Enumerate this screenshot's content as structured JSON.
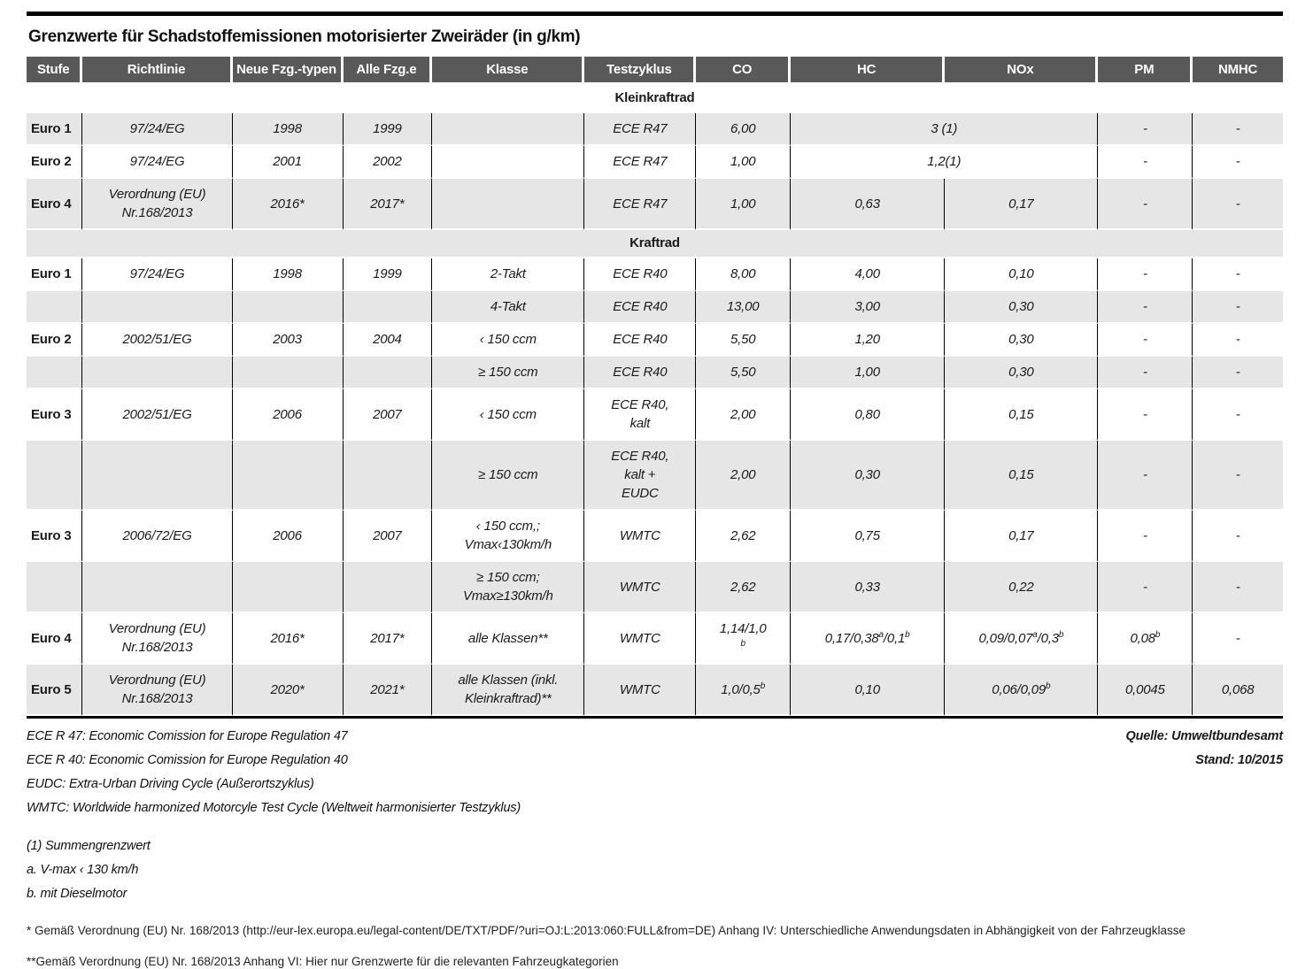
{
  "colors": {
    "header_bg": "#595959",
    "row_shade": "#e6e6e6",
    "rule": "#000000",
    "header_text": "#ffffff"
  },
  "chart_data": {
    "type": "table",
    "title": "Grenzwerte für Schadstoffemissionen motorisierter Zweiräder (in g/km)",
    "columns": [
      "Stufe",
      "Richtlinie",
      "Neue Fzg.-typen",
      "Alle Fzg.e",
      "Klasse",
      "Testzyklus",
      "CO",
      "HC",
      "NOx",
      "PM",
      "NMHC"
    ],
    "sections": [
      {
        "label": "Kleinkraftrad",
        "shade": false,
        "rows": [
          {
            "shade": true,
            "cells": [
              {
                "t": "Euro 1"
              },
              {
                "t": "97/24/EG"
              },
              {
                "t": "1998"
              },
              {
                "t": "1999"
              },
              {
                "t": ""
              },
              {
                "t": "ECE R47"
              },
              {
                "t": "6,00"
              },
              {
                "t": "3 (1)",
                "span": 2
              },
              {
                "t": "-"
              },
              {
                "t": "-"
              }
            ]
          },
          {
            "shade": false,
            "cells": [
              {
                "t": "Euro 2"
              },
              {
                "t": "97/24/EG"
              },
              {
                "t": "2001"
              },
              {
                "t": "2002"
              },
              {
                "t": ""
              },
              {
                "t": "ECE R47"
              },
              {
                "t": "1,00"
              },
              {
                "t": "1,2(1)",
                "span": 2
              },
              {
                "t": "-"
              },
              {
                "t": "-"
              }
            ]
          },
          {
            "shade": true,
            "cells": [
              {
                "t": "Euro 4"
              },
              {
                "t": "Verordnung (EU)\nNr.168/2013"
              },
              {
                "t": "2016*"
              },
              {
                "t": "2017*"
              },
              {
                "t": ""
              },
              {
                "t": "ECE R47"
              },
              {
                "t": "1,00"
              },
              {
                "t": "0,63"
              },
              {
                "t": "0,17"
              },
              {
                "t": "-"
              },
              {
                "t": "-"
              }
            ]
          }
        ]
      },
      {
        "label": "Kraftrad",
        "shade": true,
        "rows": [
          {
            "shade": false,
            "cells": [
              {
                "t": "Euro 1"
              },
              {
                "t": "97/24/EG"
              },
              {
                "t": "1998"
              },
              {
                "t": "1999"
              },
              {
                "t": "2-Takt"
              },
              {
                "t": "ECE R40"
              },
              {
                "t": "8,00"
              },
              {
                "t": "4,00"
              },
              {
                "t": "0,10"
              },
              {
                "t": "-"
              },
              {
                "t": "-"
              }
            ]
          },
          {
            "shade": true,
            "cells": [
              {
                "t": ""
              },
              {
                "t": ""
              },
              {
                "t": ""
              },
              {
                "t": ""
              },
              {
                "t": "4-Takt"
              },
              {
                "t": "ECE R40"
              },
              {
                "t": "13,00"
              },
              {
                "t": "3,00"
              },
              {
                "t": "0,30"
              },
              {
                "t": "-"
              },
              {
                "t": "-"
              }
            ]
          },
          {
            "shade": false,
            "cells": [
              {
                "t": "Euro 2"
              },
              {
                "t": "2002/51/EG"
              },
              {
                "t": "2003"
              },
              {
                "t": "2004"
              },
              {
                "t": "‹ 150 ccm"
              },
              {
                "t": "ECE R40"
              },
              {
                "t": "5,50"
              },
              {
                "t": "1,20"
              },
              {
                "t": "0,30"
              },
              {
                "t": "-"
              },
              {
                "t": "-"
              }
            ]
          },
          {
            "shade": true,
            "cells": [
              {
                "t": ""
              },
              {
                "t": ""
              },
              {
                "t": ""
              },
              {
                "t": ""
              },
              {
                "t": "≥ 150 ccm"
              },
              {
                "t": "ECE R40"
              },
              {
                "t": "5,50"
              },
              {
                "t": "1,00"
              },
              {
                "t": "0,30"
              },
              {
                "t": "-"
              },
              {
                "t": "-"
              }
            ]
          },
          {
            "shade": false,
            "cells": [
              {
                "t": "Euro 3"
              },
              {
                "t": "2002/51/EG"
              },
              {
                "t": "2006"
              },
              {
                "t": "2007"
              },
              {
                "t": "‹ 150 ccm"
              },
              {
                "t": "ECE R40,\nkalt"
              },
              {
                "t": "2,00"
              },
              {
                "t": "0,80"
              },
              {
                "t": "0,15"
              },
              {
                "t": "-"
              },
              {
                "t": "-"
              }
            ]
          },
          {
            "shade": true,
            "cells": [
              {
                "t": ""
              },
              {
                "t": ""
              },
              {
                "t": ""
              },
              {
                "t": ""
              },
              {
                "t": "≥ 150 ccm"
              },
              {
                "t": "ECE R40,\nkalt +\nEUDC"
              },
              {
                "t": "2,00"
              },
              {
                "t": "0,30"
              },
              {
                "t": "0,15"
              },
              {
                "t": "-"
              },
              {
                "t": "-"
              }
            ]
          },
          {
            "shade": false,
            "cells": [
              {
                "t": "Euro 3"
              },
              {
                "t": "2006/72/EG"
              },
              {
                "t": "2006"
              },
              {
                "t": "2007"
              },
              {
                "t": "‹ 150 ccm,;\nVmax‹130km/h"
              },
              {
                "t": "WMTC"
              },
              {
                "t": "2,62"
              },
              {
                "t": "0,75"
              },
              {
                "t": "0,17"
              },
              {
                "t": "-"
              },
              {
                "t": "-"
              }
            ]
          },
          {
            "shade": true,
            "cells": [
              {
                "t": ""
              },
              {
                "t": ""
              },
              {
                "t": ""
              },
              {
                "t": ""
              },
              {
                "t": "≥ 150 ccm;\nVmax≥130km/h"
              },
              {
                "t": "WMTC"
              },
              {
                "t": "2,62"
              },
              {
                "t": "0,33"
              },
              {
                "t": "0,22"
              },
              {
                "t": "-"
              },
              {
                "t": "-"
              }
            ]
          },
          {
            "shade": false,
            "cells": [
              {
                "t": "Euro 4"
              },
              {
                "t": "Verordnung (EU)\nNr.168/2013"
              },
              {
                "t": "2016*"
              },
              {
                "t": "2017*"
              },
              {
                "t": "alle Klassen**"
              },
              {
                "t": "WMTC"
              },
              {
                "t": "1,14/1,0\n^b^"
              },
              {
                "t": "0,17/0,38^a^/0,1^b^"
              },
              {
                "t": "0,09/0,07^a^/0,3^b^"
              },
              {
                "t": "0,08^b^"
              },
              {
                "t": "-"
              }
            ]
          },
          {
            "shade": true,
            "cells": [
              {
                "t": "Euro 5"
              },
              {
                "t": "Verordnung (EU)\nNr.168/2013"
              },
              {
                "t": "2020*"
              },
              {
                "t": "2021*"
              },
              {
                "t": "alle Klassen (inkl.\nKleinkraftrad)**"
              },
              {
                "t": "WMTC"
              },
              {
                "t": "1,0/0,5^b^"
              },
              {
                "t": "0,10"
              },
              {
                "t": "0,06/0,09^b^"
              },
              {
                "t": "0,0045"
              },
              {
                "t": "0,068"
              }
            ]
          }
        ]
      }
    ],
    "footnotes_left": [
      "ECE R 47: Economic Comission for Europe Regulation 47",
      "ECE R 40: Economic Comission for Europe Regulation 40",
      "EUDC: Extra-Urban Driving Cycle (Außerortszyklus)",
      "WMTC: Worldwide harmonized Motorcyle Test Cycle (Weltweit harmonisierter Testzyklus)"
    ],
    "source_lines": [
      "Quelle: Umweltbundesamt",
      "Stand: 10/2015"
    ],
    "notes": [
      "(1) Summengrenzwert",
      "a. V-max ‹ 130 km/h",
      "b. mit Dieselmotor"
    ],
    "star_notes": [
      "* Gemäß Verordnung (EU) Nr. 168/2013 (http://eur-lex.europa.eu/legal-content/DE/TXT/PDF/?uri=OJ:L:2013:060:FULL&from=DE) Anhang IV: Unterschiedliche Anwendungsdaten in Abhängigkeit von der Fahrzeugklasse",
      "**Gemäß Verordnung (EU) Nr. 168/2013 Anhang VI: Hier nur Grenzwerte für die relevanten Fahrzeugkategorien"
    ]
  }
}
